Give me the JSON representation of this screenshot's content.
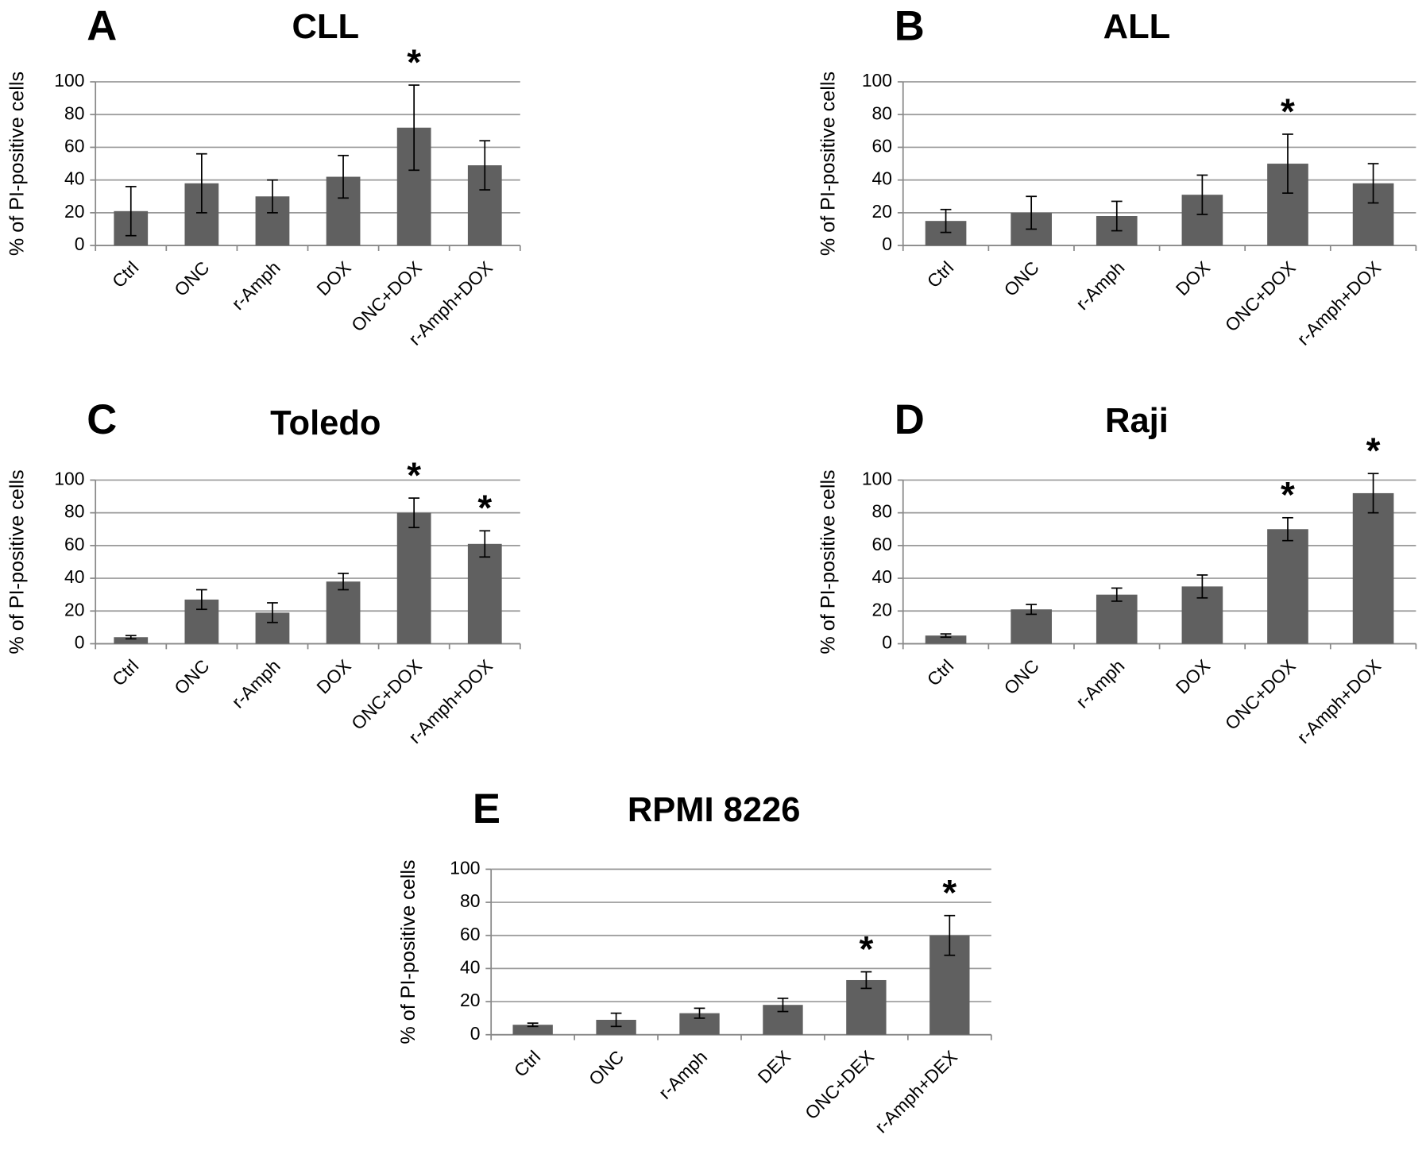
{
  "chart_data": [
    {
      "type": "bar",
      "panel": "A",
      "title": "CLL",
      "y_label": "% of PI-positive  cells",
      "categories": [
        "Ctrl",
        "ONC",
        "r-Amph",
        "DOX",
        "ONC+DOX",
        "r-Amph+DOX"
      ],
      "values": [
        21,
        38,
        30,
        42,
        72,
        49
      ],
      "errors": [
        15,
        18,
        10,
        13,
        26,
        15
      ],
      "color": "#606060",
      "ylim": [
        0,
        100
      ],
      "yticks": [
        0,
        20,
        40,
        60,
        80,
        100
      ],
      "grid": true,
      "annotations": [
        {
          "text": "*",
          "category": "ONC+DOX"
        }
      ]
    },
    {
      "type": "bar",
      "panel": "B",
      "title": "ALL",
      "y_label": "% of PI-positive  cells",
      "categories": [
        "Ctrl",
        "ONC",
        "r-Amph",
        "DOX",
        "ONC+DOX",
        "r-Amph+DOX"
      ],
      "values": [
        15,
        20,
        18,
        31,
        50,
        38
      ],
      "errors": [
        7,
        10,
        9,
        12,
        18,
        12
      ],
      "color": "#606060",
      "ylim": [
        0,
        100
      ],
      "yticks": [
        0,
        20,
        40,
        60,
        80,
        100
      ],
      "grid": true,
      "annotations": [
        {
          "text": "*",
          "category": "ONC+DOX"
        }
      ]
    },
    {
      "type": "bar",
      "panel": "C",
      "title": "Toledo",
      "y_label": "% of PI-positive  cells",
      "categories": [
        "Ctrl",
        "ONC",
        "r-Amph",
        "DOX",
        "ONC+DOX",
        "r-Amph+DOX"
      ],
      "values": [
        4,
        27,
        19,
        38,
        80,
        61
      ],
      "errors": [
        1,
        6,
        6,
        5,
        9,
        8
      ],
      "color": "#606060",
      "ylim": [
        0,
        100
      ],
      "yticks": [
        0,
        20,
        40,
        60,
        80,
        100
      ],
      "grid": true,
      "annotations": [
        {
          "text": "*",
          "category": "ONC+DOX"
        },
        {
          "text": "*",
          "category": "r-Amph+DOX"
        }
      ]
    },
    {
      "type": "bar",
      "panel": "D",
      "title": "Raji",
      "y_label": "% of PI-positive  cells",
      "categories": [
        "Ctrl",
        "ONC",
        "r-Amph",
        "DOX",
        "ONC+DOX",
        "r-Amph+DOX"
      ],
      "values": [
        5,
        21,
        30,
        35,
        70,
        92
      ],
      "errors": [
        1,
        3,
        4,
        7,
        7,
        12
      ],
      "color": "#606060",
      "ylim": [
        0,
        100
      ],
      "yticks": [
        0,
        20,
        40,
        60,
        80,
        100
      ],
      "grid": true,
      "annotations": [
        {
          "text": "*",
          "category": "ONC+DOX"
        },
        {
          "text": "*",
          "category": "r-Amph+DOX"
        }
      ]
    },
    {
      "type": "bar",
      "panel": "E",
      "title": "RPMI 8226",
      "y_label": "% of PI-positive  cells",
      "categories": [
        "Ctrl",
        "ONC",
        "r-Amph",
        "DEX",
        "ONC+DEX",
        "r-Amph+DEX"
      ],
      "values": [
        6,
        9,
        13,
        18,
        33,
        60
      ],
      "errors": [
        1,
        4,
        3,
        4,
        5,
        12
      ],
      "color": "#606060",
      "ylim": [
        0,
        100
      ],
      "yticks": [
        0,
        20,
        40,
        60,
        80,
        100
      ],
      "grid": true,
      "annotations": [
        {
          "text": "*",
          "category": "ONC+DEX"
        },
        {
          "text": "*",
          "category": "r-Amph+DEX"
        }
      ]
    }
  ]
}
